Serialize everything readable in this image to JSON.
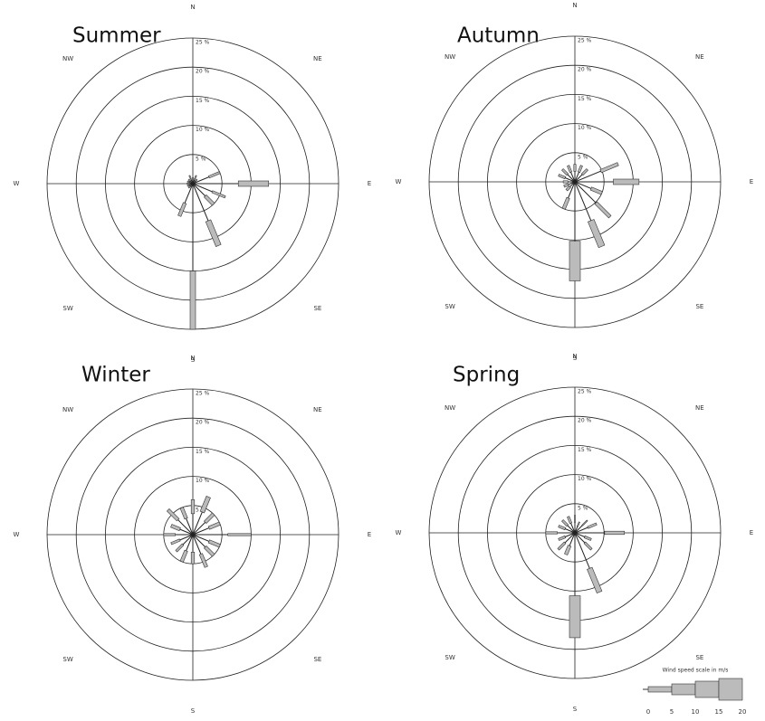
{
  "chart_data": [
    {
      "type": "windrose",
      "title": "Summer",
      "compass_labels": [
        "N",
        "NE",
        "E",
        "SE",
        "S",
        "SW",
        "W",
        "NW"
      ],
      "x": [
        0,
        22.5,
        45,
        67.5,
        90,
        112.5,
        135,
        157.5,
        180,
        202.5,
        225,
        247.5,
        270,
        292.5,
        315,
        337.5
      ],
      "values": [
        1,
        1.5,
        1,
        5,
        13,
        6,
        5,
        11.5,
        25,
        6,
        1,
        1,
        1,
        1,
        1,
        1.5
      ],
      "speeds": [
        1,
        1,
        1,
        2,
        5,
        2,
        3,
        5,
        5,
        3,
        1,
        1,
        1,
        1,
        1,
        1
      ],
      "rlim": [
        0,
        25
      ],
      "rticks": [
        {
          "value": 5,
          "label": "5 %"
        },
        {
          "value": 10,
          "label": "10 %"
        },
        {
          "value": 15,
          "label": "15 %"
        },
        {
          "value": 20,
          "label": "20 %"
        },
        {
          "value": 25,
          "label": "25 %"
        }
      ]
    },
    {
      "type": "windrose",
      "title": "Autumn",
      "compass_labels": [
        "N",
        "NE",
        "E",
        "SE",
        "S",
        "SW",
        "W",
        "NW"
      ],
      "x": [
        0,
        22.5,
        45,
        67.5,
        90,
        112.5,
        135,
        157.5,
        180,
        202.5,
        225,
        247.5,
        270,
        292.5,
        315,
        337.5
      ],
      "values": [
        3,
        3,
        3,
        8,
        11,
        5,
        8.5,
        12,
        17,
        5,
        2,
        2,
        2,
        3,
        3,
        3
      ],
      "speeds": [
        2,
        2,
        2,
        3,
        5,
        3,
        3,
        6,
        10,
        3,
        2,
        2,
        2,
        2,
        2,
        2
      ],
      "rlim": [
        0,
        25
      ],
      "rticks": [
        {
          "value": 5,
          "label": "5 %"
        },
        {
          "value": 10,
          "label": "10 %"
        },
        {
          "value": 15,
          "label": "15 %"
        },
        {
          "value": 20,
          "label": "20 %"
        },
        {
          "value": 25,
          "label": "25 %"
        }
      ]
    },
    {
      "type": "windrose",
      "title": "Winter",
      "compass_labels": [
        "N",
        "NE",
        "E",
        "SE",
        "S",
        "SW",
        "W",
        "NW"
      ],
      "x": [
        0,
        22.5,
        45,
        67.5,
        90,
        112.5,
        135,
        157.5,
        180,
        202.5,
        225,
        247.5,
        270,
        292.5,
        315,
        337.5
      ],
      "values": [
        6,
        7,
        5,
        5,
        10,
        5,
        5,
        6,
        5,
        5,
        4,
        4,
        5,
        4,
        6,
        5
      ],
      "speeds": [
        3,
        4,
        3,
        3,
        2,
        3,
        3,
        3,
        3,
        3,
        2,
        2,
        2,
        3,
        3,
        3
      ],
      "rlim": [
        0,
        25
      ],
      "rticks": [
        {
          "value": 5,
          "label": "5 %"
        },
        {
          "value": 10,
          "label": "10 %"
        },
        {
          "value": 15,
          "label": "15 %"
        },
        {
          "value": 20,
          "label": "20 %"
        },
        {
          "value": 25,
          "label": "25 %"
        }
      ]
    },
    {
      "type": "windrose",
      "title": "Spring",
      "compass_labels": [
        "N",
        "NE",
        "E",
        "SE",
        "S",
        "SW",
        "W",
        "NW"
      ],
      "x": [
        0,
        22.5,
        45,
        67.5,
        90,
        112.5,
        135,
        157.5,
        180,
        202.5,
        225,
        247.5,
        270,
        292.5,
        315,
        337.5
      ],
      "values": [
        3,
        2,
        3,
        4,
        8.5,
        3,
        4,
        11,
        18,
        4,
        4,
        3,
        5,
        3,
        3,
        3
      ],
      "speeds": [
        1,
        1,
        1,
        2,
        3,
        2,
        2,
        5,
        10,
        3,
        2,
        2,
        2,
        2,
        2,
        2
      ],
      "rlim": [
        0,
        25
      ],
      "rticks": [
        {
          "value": 5,
          "label": "5 %"
        },
        {
          "value": 10,
          "label": "10 %"
        },
        {
          "value": 15,
          "label": "15 %"
        },
        {
          "value": 20,
          "label": "20 %"
        },
        {
          "value": 25,
          "label": "25 %"
        }
      ],
      "speed_legend": {
        "title": "Wind speed scale in m/s",
        "ticks": [
          0,
          5,
          10,
          15,
          20
        ]
      }
    }
  ]
}
